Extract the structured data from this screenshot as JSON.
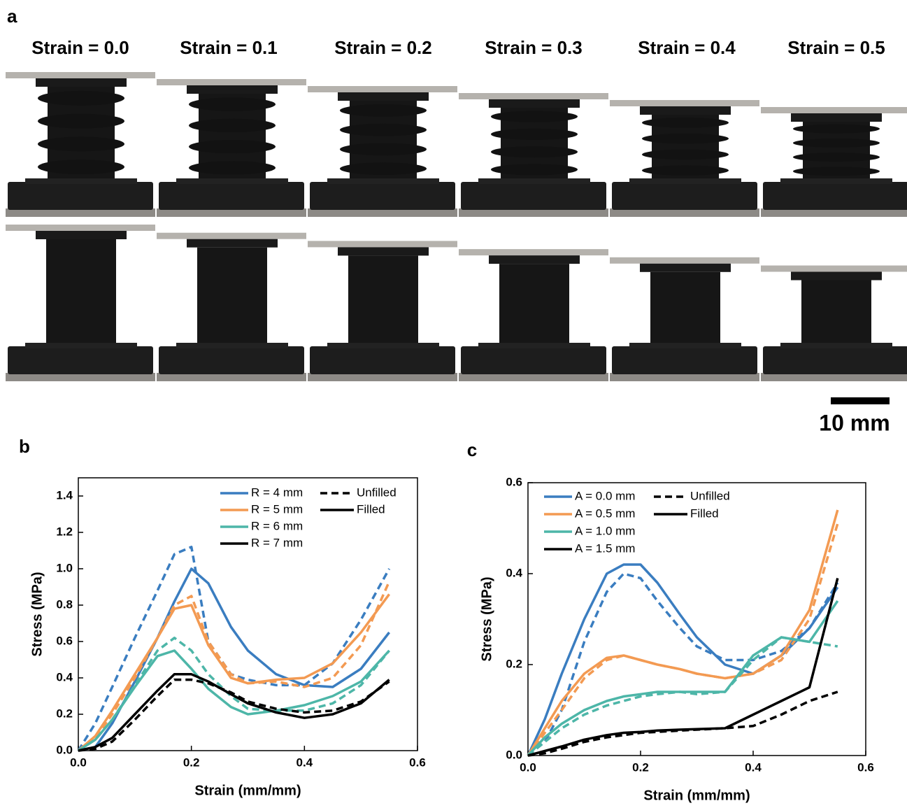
{
  "panel_a": {
    "label": "a",
    "strain_labels": [
      "Strain = 0.0",
      "Strain = 0.1",
      "Strain = 0.2",
      "Strain = 0.3",
      "Strain = 0.4",
      "Strain = 0.5"
    ],
    "scale_bar": "10 mm"
  },
  "chart_data": [
    {
      "type": "line",
      "panel": "b",
      "x_label": "Strain (mm/mm)",
      "y_label": "Stress (MPa)",
      "xlim": [
        0,
        0.6
      ],
      "xticks": [
        {
          "value": 0,
          "label": "0.0"
        },
        0.2,
        0.4,
        0.6
      ],
      "ylim": [
        0,
        1.5
      ],
      "yticks": [
        {
          "value": 0,
          "label": "0.0"
        },
        0.2,
        0.4,
        0.6,
        0.8,
        {
          "value": 1,
          "label": "1.0"
        },
        1.2,
        1.4
      ],
      "legend": [
        {
          "name": "R = 4 mm",
          "color": "#3a7dc0"
        },
        {
          "name": "R = 5 mm",
          "color": "#f39a52"
        },
        {
          "name": "R = 6 mm",
          "color": "#4db6a8"
        },
        {
          "name": "R = 7 mm",
          "color": "#000000"
        }
      ],
      "line_styles": [
        {
          "name": "Unfilled",
          "dashed": true
        },
        {
          "name": "Filled",
          "dashed": false
        }
      ],
      "x": [
        0,
        0.03,
        0.06,
        0.1,
        0.14,
        0.17,
        0.2,
        0.23,
        0.27,
        0.3,
        0.35,
        0.4,
        0.45,
        0.5,
        0.55
      ],
      "series": [
        {
          "color": "#3a7dc0",
          "dashed": false,
          "values": [
            0,
            0.02,
            0.15,
            0.38,
            0.62,
            0.82,
            1.0,
            0.92,
            0.68,
            0.55,
            0.42,
            0.36,
            0.35,
            0.45,
            0.65
          ]
        },
        {
          "color": "#3a7dc0",
          "dashed": true,
          "values": [
            0,
            0.15,
            0.35,
            0.62,
            0.88,
            1.08,
            1.12,
            0.6,
            0.42,
            0.39,
            0.36,
            0.36,
            0.48,
            0.72,
            1.0
          ]
        },
        {
          "color": "#f39a52",
          "dashed": false,
          "values": [
            0,
            0.08,
            0.22,
            0.42,
            0.62,
            0.78,
            0.8,
            0.58,
            0.4,
            0.37,
            0.39,
            0.4,
            0.48,
            0.65,
            0.86
          ]
        },
        {
          "color": "#f39a52",
          "dashed": true,
          "values": [
            0,
            0.07,
            0.2,
            0.4,
            0.62,
            0.8,
            0.85,
            0.6,
            0.42,
            0.37,
            0.38,
            0.35,
            0.4,
            0.58,
            0.93
          ]
        },
        {
          "color": "#4db6a8",
          "dashed": false,
          "values": [
            0,
            0.06,
            0.17,
            0.35,
            0.52,
            0.55,
            0.45,
            0.34,
            0.24,
            0.2,
            0.22,
            0.25,
            0.3,
            0.38,
            0.55
          ]
        },
        {
          "color": "#4db6a8",
          "dashed": true,
          "values": [
            0,
            0.06,
            0.17,
            0.36,
            0.55,
            0.62,
            0.55,
            0.42,
            0.3,
            0.23,
            0.22,
            0.22,
            0.26,
            0.36,
            0.55
          ]
        },
        {
          "color": "#000000",
          "dashed": false,
          "values": [
            0,
            0.02,
            0.07,
            0.2,
            0.33,
            0.42,
            0.42,
            0.38,
            0.31,
            0.26,
            0.21,
            0.18,
            0.2,
            0.26,
            0.39
          ]
        },
        {
          "color": "#000000",
          "dashed": true,
          "values": [
            0,
            0.01,
            0.05,
            0.17,
            0.3,
            0.39,
            0.39,
            0.37,
            0.32,
            0.27,
            0.23,
            0.21,
            0.22,
            0.27,
            0.38
          ]
        }
      ]
    },
    {
      "type": "line",
      "panel": "c",
      "x_label": "Strain (mm/mm)",
      "y_label": "Stress (MPa)",
      "xlim": [
        0,
        0.6
      ],
      "xticks": [
        {
          "value": 0,
          "label": "0.0"
        },
        0.2,
        0.4,
        0.6
      ],
      "ylim": [
        0,
        0.6
      ],
      "yticks": [
        {
          "value": 0,
          "label": "0.0"
        },
        0.2,
        0.4,
        0.6
      ],
      "legend": [
        {
          "name": "A = 0.0 mm",
          "color": "#3a7dc0"
        },
        {
          "name": "A = 0.5 mm",
          "color": "#f39a52"
        },
        {
          "name": "A = 1.0 mm",
          "color": "#4db6a8"
        },
        {
          "name": "A = 1.5 mm",
          "color": "#000000"
        }
      ],
      "line_styles": [
        {
          "name": "Unfilled",
          "dashed": true
        },
        {
          "name": "Filled",
          "dashed": false
        }
      ],
      "x": [
        0,
        0.03,
        0.06,
        0.1,
        0.14,
        0.17,
        0.2,
        0.23,
        0.27,
        0.3,
        0.35,
        0.4,
        0.45,
        0.5,
        0.55
      ],
      "series": [
        {
          "color": "#3a7dc0",
          "dashed": false,
          "values": [
            0,
            0.08,
            0.18,
            0.3,
            0.4,
            0.42,
            0.42,
            0.38,
            0.31,
            0.26,
            0.2,
            0.18,
            0.22,
            0.28,
            0.37
          ]
        },
        {
          "color": "#3a7dc0",
          "dashed": true,
          "values": [
            0,
            0.03,
            0.1,
            0.25,
            0.36,
            0.4,
            0.39,
            0.34,
            0.28,
            0.24,
            0.21,
            0.21,
            0.23,
            0.28,
            0.38
          ]
        },
        {
          "color": "#f39a52",
          "dashed": false,
          "values": [
            0,
            0.06,
            0.12,
            0.18,
            0.215,
            0.22,
            0.21,
            0.2,
            0.19,
            0.18,
            0.17,
            0.18,
            0.22,
            0.32,
            0.54
          ]
        },
        {
          "color": "#f39a52",
          "dashed": true,
          "values": [
            0,
            0.05,
            0.1,
            0.17,
            0.21,
            0.22,
            0.21,
            0.2,
            0.19,
            0.18,
            0.17,
            0.18,
            0.21,
            0.3,
            0.51
          ]
        },
        {
          "color": "#4db6a8",
          "dashed": false,
          "values": [
            0,
            0.04,
            0.07,
            0.1,
            0.12,
            0.13,
            0.135,
            0.14,
            0.14,
            0.14,
            0.14,
            0.22,
            0.26,
            0.25,
            0.34
          ]
        },
        {
          "color": "#4db6a8",
          "dashed": true,
          "values": [
            0,
            0.03,
            0.06,
            0.09,
            0.11,
            0.12,
            0.13,
            0.135,
            0.14,
            0.135,
            0.14,
            0.21,
            0.26,
            0.25,
            0.24
          ]
        },
        {
          "color": "#000000",
          "dashed": false,
          "values": [
            0,
            0.01,
            0.02,
            0.035,
            0.045,
            0.05,
            0.052,
            0.055,
            0.057,
            0.058,
            0.06,
            0.09,
            0.12,
            0.15,
            0.39
          ]
        },
        {
          "color": "#000000",
          "dashed": true,
          "values": [
            0,
            0.005,
            0.015,
            0.03,
            0.04,
            0.045,
            0.05,
            0.052,
            0.055,
            0.057,
            0.06,
            0.065,
            0.09,
            0.12,
            0.14
          ]
        }
      ]
    }
  ]
}
